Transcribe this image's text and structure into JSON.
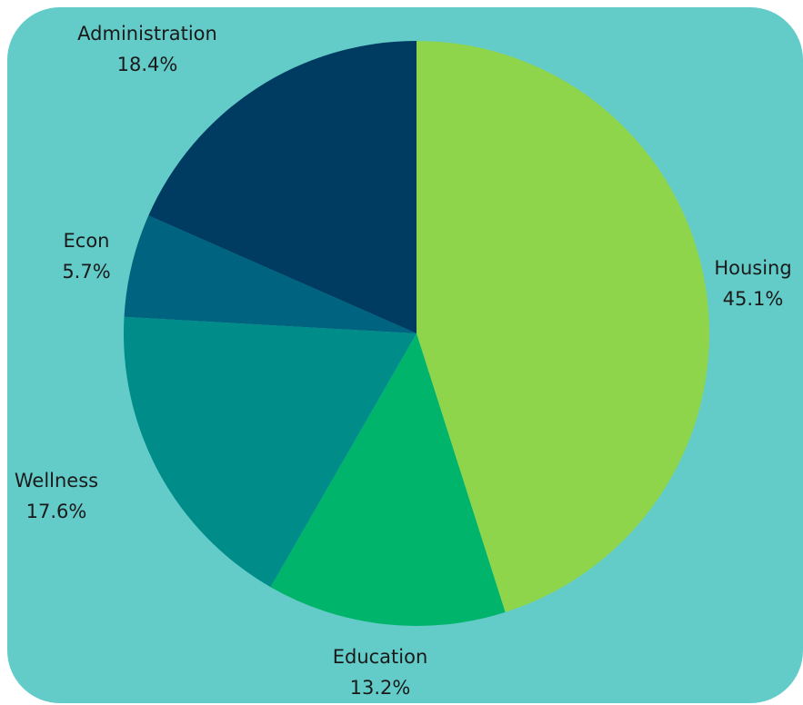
{
  "background_color": "#63ccc9",
  "chart_data": {
    "type": "pie",
    "title": "",
    "start_angle_deg": 0,
    "direction": "clockwise",
    "slices": [
      {
        "label": "Housing",
        "value": 45.1,
        "value_label": "45.1%",
        "color": "#8ed54b"
      },
      {
        "label": "Education",
        "value": 13.2,
        "value_label": "13.2%",
        "color": "#00b56b"
      },
      {
        "label": "Wellness",
        "value": 17.6,
        "value_label": "17.6%",
        "color": "#008d8a"
      },
      {
        "label": "Econ",
        "value": 5.7,
        "value_label": "5.7%",
        "color": "#00637f"
      },
      {
        "label": "Administration",
        "value": 18.4,
        "value_label": "18.4%",
        "color": "#003c61"
      }
    ]
  }
}
